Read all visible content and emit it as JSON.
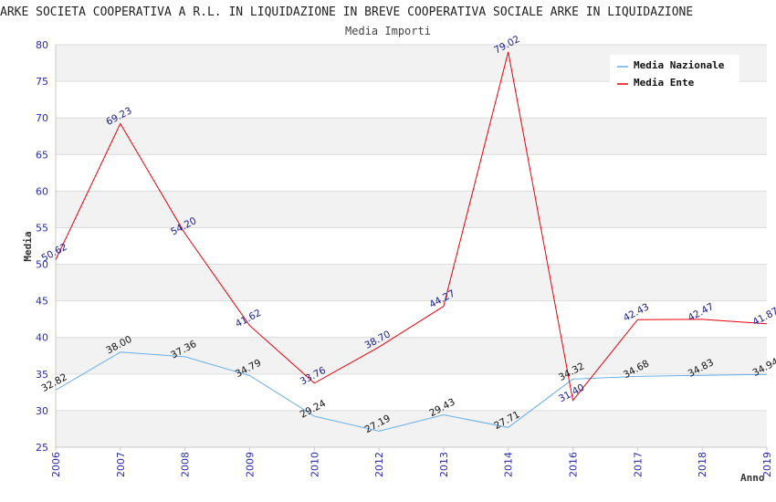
{
  "chart_data": {
    "type": "line",
    "title": "ARKE SOCIETA COOPERATIVA A R.L. IN LIQUIDAZIONE IN BREVE COOPERATIVA SOCIALE ARKE IN LIQUIDAZIONE",
    "subtitle": "Media Importi",
    "xlabel": "Anno",
    "ylabel": "Media",
    "ylim": [
      25,
      80
    ],
    "yticks": [
      25,
      30,
      35,
      40,
      45,
      50,
      55,
      60,
      65,
      70,
      75,
      80
    ],
    "categories": [
      "2006",
      "2007",
      "2008",
      "2009",
      "2010",
      "2012",
      "2013",
      "2014",
      "2016",
      "2017",
      "2018",
      "2019"
    ],
    "series": [
      {
        "name": "Media Nazionale",
        "color": "#6aaee8",
        "values": [
          32.82,
          38.0,
          37.36,
          34.79,
          29.24,
          27.19,
          29.43,
          27.71,
          34.32,
          34.68,
          34.83,
          34.94
        ],
        "labels": [
          "32.82",
          "38.00",
          "37.36",
          "34.79",
          "29.24",
          "27.19",
          "29.43",
          "27.71",
          "34.32",
          "34.68",
          "34.83",
          "34.94"
        ]
      },
      {
        "name": "Media Ente",
        "color": "#e8000b",
        "values": [
          50.62,
          69.23,
          54.2,
          41.62,
          33.76,
          38.7,
          44.27,
          79.02,
          31.4,
          42.43,
          42.47,
          41.87
        ],
        "labels": [
          "50.62",
          "69.23",
          "54.20",
          "41.62",
          "33.76",
          "38.70",
          "44.27",
          "79.02",
          "31.40",
          "42.43",
          "42.47",
          "41.87"
        ]
      }
    ],
    "grid": true,
    "legend": "top-right"
  }
}
